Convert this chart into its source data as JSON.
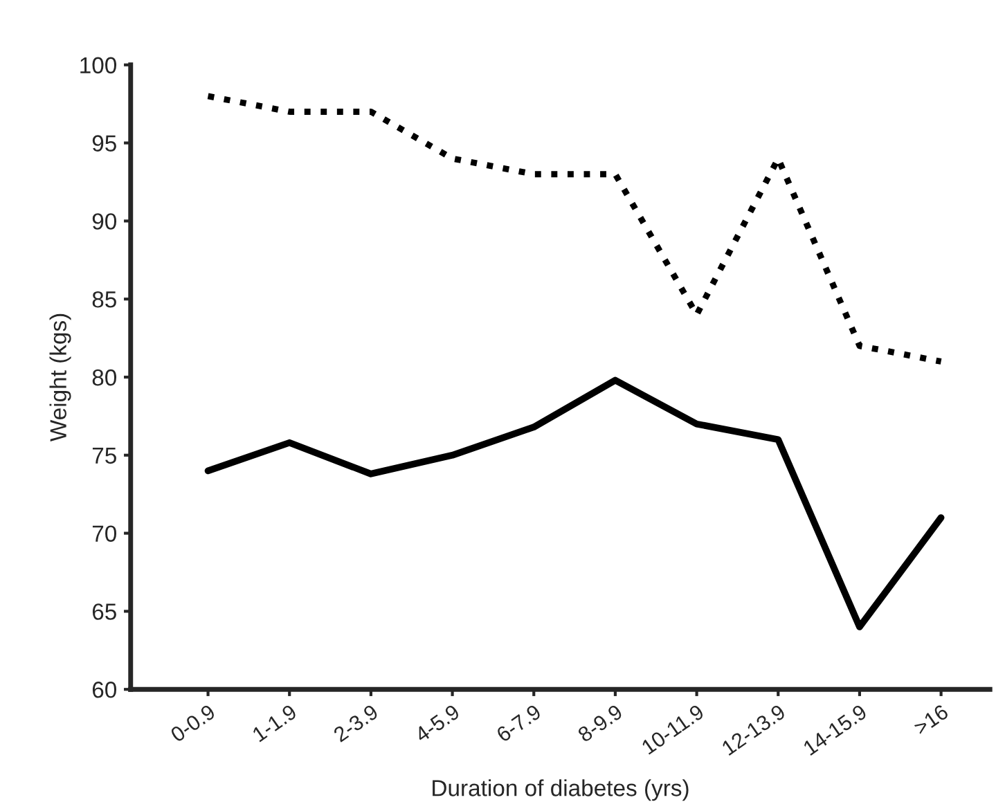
{
  "chart_data": {
    "type": "line",
    "xlabel": "Duration of diabetes (yrs)",
    "ylabel": "Weight (kgs)",
    "categories": [
      "0-0.9",
      "1-1.9",
      "2-3.9",
      "4-5.9",
      "6-7.9",
      "8-9.9",
      "10-11.9",
      "12-13.9",
      "14-15.9",
      ">16"
    ],
    "series": [
      {
        "color": "#000000",
        "line_style": "dotted",
        "values": [
          98,
          97,
          97,
          94,
          93,
          93,
          84,
          94,
          82,
          81
        ]
      },
      {
        "color": "#000000",
        "line_style": "solid",
        "values": [
          74,
          75.8,
          73.8,
          75,
          76.8,
          79.8,
          77,
          76,
          64,
          71
        ]
      }
    ],
    "ylim": [
      60,
      100
    ],
    "yticks": [
      60,
      65,
      70,
      75,
      80,
      85,
      90,
      95,
      100
    ],
    "grid": false,
    "legend": false,
    "marker": "none"
  }
}
